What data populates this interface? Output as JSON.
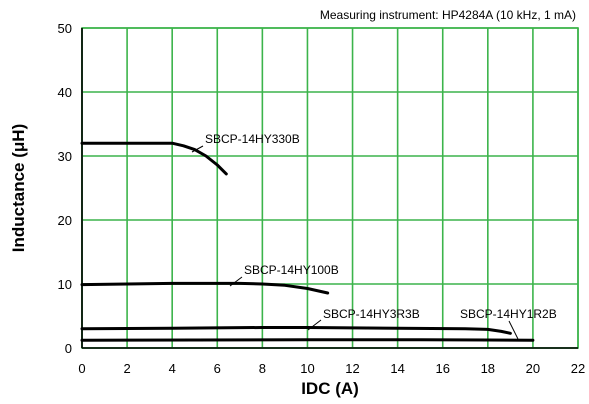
{
  "chart_data": {
    "type": "line",
    "note": "Measuring instrument: HP4284A (10 kHz, 1 mA)",
    "xlabel": "IDC (A)",
    "ylabel": "Inductance (μH)",
    "xlim": [
      0,
      22
    ],
    "ylim": [
      0,
      50
    ],
    "x_ticks": [
      0,
      2,
      4,
      6,
      8,
      10,
      12,
      14,
      16,
      18,
      20,
      22
    ],
    "y_ticks": [
      0,
      10,
      20,
      30,
      40,
      50
    ],
    "grid": true,
    "grid_color": "#3cb44b",
    "line_color": "#000000",
    "series": [
      {
        "name": "SBCP-14HY330B",
        "points": [
          [
            0,
            32
          ],
          [
            1,
            32
          ],
          [
            2,
            32
          ],
          [
            3,
            32
          ],
          [
            4,
            32
          ],
          [
            4.5,
            31.6
          ],
          [
            5,
            31
          ],
          [
            5.5,
            30
          ],
          [
            6,
            28.6
          ],
          [
            6.4,
            27.2
          ]
        ]
      },
      {
        "name": "SBCP-14HY100B",
        "points": [
          [
            0,
            9.9
          ],
          [
            2,
            10
          ],
          [
            4,
            10.1
          ],
          [
            6,
            10.1
          ],
          [
            7,
            10.1
          ],
          [
            8,
            10
          ],
          [
            9,
            9.8
          ],
          [
            10,
            9.3
          ],
          [
            10.5,
            8.9
          ],
          [
            10.9,
            8.6
          ]
        ]
      },
      {
        "name": "SBCP-14HY3R3B",
        "points": [
          [
            0,
            3
          ],
          [
            4,
            3.1
          ],
          [
            8,
            3.2
          ],
          [
            10,
            3.2
          ],
          [
            14,
            3.1
          ],
          [
            17,
            3
          ],
          [
            18,
            2.9
          ],
          [
            18.6,
            2.6
          ],
          [
            19,
            2.3
          ]
        ]
      },
      {
        "name": "SBCP-14HY1R2B",
        "points": [
          [
            0,
            1.2
          ],
          [
            5,
            1.25
          ],
          [
            10,
            1.3
          ],
          [
            15,
            1.3
          ],
          [
            18,
            1.25
          ],
          [
            20,
            1.2
          ]
        ]
      }
    ]
  }
}
